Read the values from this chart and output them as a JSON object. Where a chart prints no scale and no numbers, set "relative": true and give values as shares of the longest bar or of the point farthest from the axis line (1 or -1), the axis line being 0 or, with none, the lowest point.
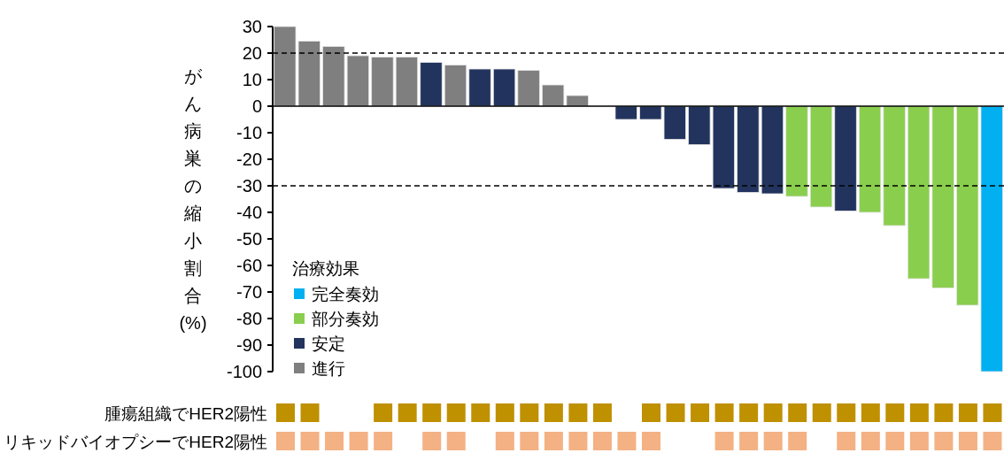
{
  "chart_data": [
    {
      "type": "bar",
      "ylabel": "がん病巣の縮小割合(%)",
      "legend_title": "治療効果",
      "legend": "left",
      "categories": [
        null,
        null,
        null,
        null,
        null,
        null,
        null,
        null,
        null,
        null,
        null,
        null,
        null,
        null,
        null,
        null,
        null,
        null,
        null,
        null,
        null,
        null,
        null,
        null,
        null,
        null,
        null,
        null,
        null,
        null
      ],
      "series": [
        {
          "name": "完全奏効",
          "color": "#00b0f0",
          "values": [
            null,
            null,
            null,
            null,
            null,
            null,
            null,
            null,
            null,
            null,
            null,
            null,
            null,
            null,
            null,
            null,
            null,
            null,
            null,
            null,
            null,
            null,
            null,
            null,
            null,
            null,
            null,
            null,
            null,
            -100
          ]
        },
        {
          "name": "部分奏効",
          "color": "#8ace4e",
          "values": [
            null,
            null,
            null,
            null,
            null,
            null,
            null,
            null,
            null,
            null,
            null,
            null,
            null,
            null,
            null,
            null,
            null,
            null,
            null,
            null,
            null,
            -34,
            -38,
            null,
            -40,
            -45,
            -65,
            -68.5,
            -75,
            null
          ]
        },
        {
          "name": "安定",
          "color": "#22345e",
          "values": [
            null,
            null,
            null,
            null,
            null,
            null,
            16.5,
            null,
            14,
            14,
            null,
            null,
            null,
            null,
            -5,
            -5,
            -12.5,
            -14.5,
            -31,
            -32.5,
            -33,
            null,
            null,
            -39.5,
            null,
            null,
            null,
            null,
            null,
            null
          ]
        },
        {
          "name": "進行",
          "color": "#7f7f7f",
          "values": [
            30,
            24.5,
            22.5,
            19,
            18.5,
            18.5,
            null,
            15.5,
            null,
            null,
            13.5,
            8,
            4,
            null,
            null,
            null,
            null,
            null,
            null,
            null,
            null,
            null,
            null,
            null,
            null,
            null,
            null,
            null,
            null,
            null
          ]
        }
      ],
      "ylim": [
        -100,
        30
      ],
      "yticks": [
        30,
        20,
        10,
        0,
        -10,
        -20,
        -30,
        -40,
        -50,
        -60,
        -70,
        -80,
        -90,
        -100
      ],
      "ref_lines": [
        {
          "axis": "y",
          "value": 20,
          "line_style": "dashed",
          "color": "#000000"
        },
        {
          "axis": "y",
          "value": -30,
          "line_style": "dashed",
          "color": "#000000"
        }
      ]
    },
    {
      "type": "bar",
      "relative": true,
      "categories": [
        null,
        null,
        null,
        null,
        null,
        null,
        null,
        null,
        null,
        null,
        null,
        null,
        null,
        null,
        null,
        null,
        null,
        null,
        null,
        null,
        null,
        null,
        null,
        null,
        null,
        null,
        null,
        null,
        null,
        null
      ],
      "series": [
        {
          "name": "腫瘍組織でHER2陽性",
          "color": "#bf9000",
          "values": [
            1,
            1,
            null,
            null,
            1,
            1,
            1,
            1,
            1,
            1,
            1,
            1,
            1,
            1,
            null,
            1,
            1,
            1,
            1,
            1,
            1,
            1,
            1,
            1,
            1,
            1,
            1,
            1,
            1,
            1
          ]
        }
      ]
    },
    {
      "type": "bar",
      "relative": true,
      "categories": [
        null,
        null,
        null,
        null,
        null,
        null,
        null,
        null,
        null,
        null,
        null,
        null,
        null,
        null,
        null,
        null,
        null,
        null,
        null,
        null,
        null,
        null,
        null,
        null,
        null,
        null,
        null,
        null,
        null,
        null
      ],
      "series": [
        {
          "name": "リキッドバイオプシーでHER2陽性",
          "color": "#f4b183",
          "values": [
            1,
            1,
            1,
            1,
            1,
            null,
            1,
            1,
            null,
            1,
            1,
            1,
            1,
            1,
            1,
            1,
            null,
            null,
            1,
            1,
            1,
            1,
            null,
            1,
            1,
            1,
            1,
            1,
            1,
            1
          ]
        }
      ]
    }
  ]
}
